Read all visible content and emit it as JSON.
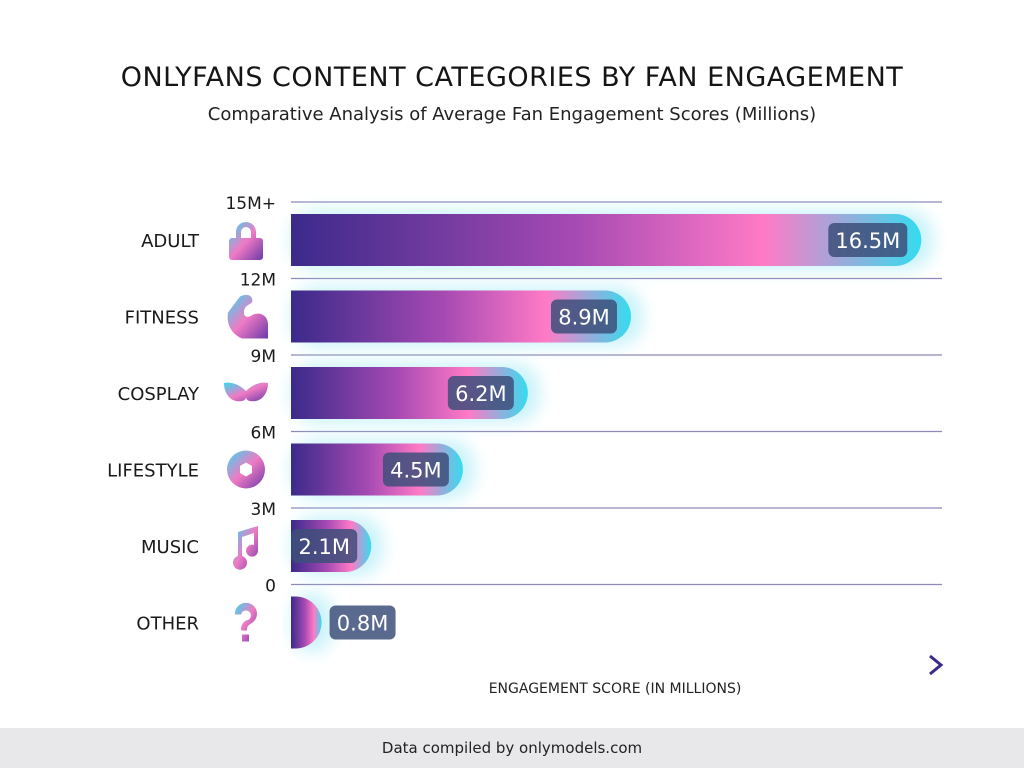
{
  "title": "ONLYFANS CONTENT CATEGORIES BY FAN ENGAGEMENT",
  "subtitle": "Comparative Analysis of Average Fan Engagement Scores (Millions)",
  "footer": "Data compiled by onlymodels.com",
  "colors": {
    "dark": "#3b2a8a",
    "mid": "#a64ab3",
    "pink": "#ff7ac6",
    "cyan": "#34dcef",
    "label_bg": "#3d4f7a"
  },
  "chart_data": {
    "type": "bar",
    "orientation": "horizontal",
    "title": "ONLYFANS CONTENT CATEGORIES BY FAN ENGAGEMENT",
    "subtitle": "Comparative Analysis of Average Fan Engagement Scores (Millions)",
    "xlabel": "ENGAGEMENT SCORE (IN MILLIONS)",
    "categories": [
      "ADULT",
      "FITNESS",
      "COSPLAY",
      "LIFESTYLE",
      "MUSIC",
      "OTHER"
    ],
    "icons": [
      "lock-icon",
      "flexed-bicep-icon",
      "mask-icon",
      "camera-aperture-icon",
      "music-note-icon",
      "question-mark-icon"
    ],
    "values": [
      16.5,
      8.9,
      6.2,
      4.5,
      2.1,
      0.8
    ],
    "data_labels": [
      "16.5M",
      "8.9M",
      "6.2M",
      "4.5M",
      "2.1M",
      "0.8M"
    ],
    "tick_labels": [
      "15M+",
      "12M",
      "9M",
      "6M",
      "3M",
      "0"
    ],
    "grid": true
  }
}
